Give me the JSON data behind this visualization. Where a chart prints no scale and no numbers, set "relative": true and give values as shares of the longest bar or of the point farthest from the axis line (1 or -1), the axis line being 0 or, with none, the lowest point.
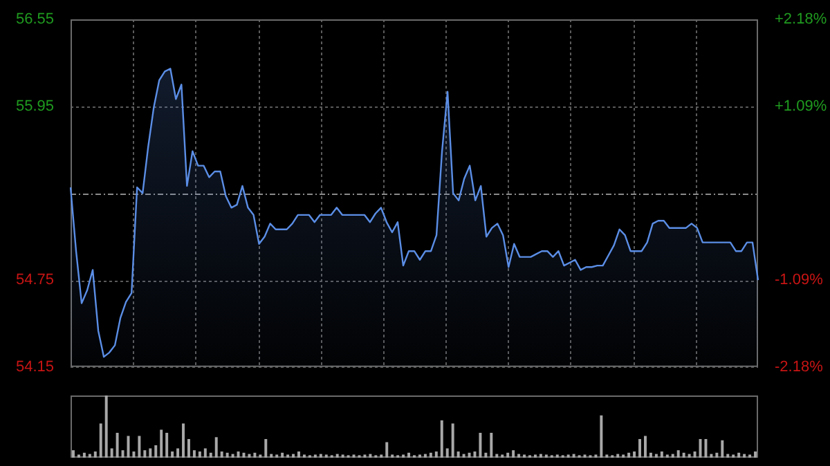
{
  "chart_data": [
    {
      "type": "area",
      "categories": [
        null,
        null,
        null,
        null,
        null,
        null,
        null,
        null,
        null,
        null,
        null,
        null,
        null,
        null,
        null,
        null,
        null,
        null,
        null,
        null,
        null,
        null,
        null,
        null,
        null,
        null,
        null,
        null,
        null,
        null,
        null,
        null,
        null,
        null,
        null,
        null,
        null,
        null,
        null,
        null,
        null,
        null,
        null,
        null,
        null,
        null,
        null,
        null,
        null,
        null,
        null,
        null,
        null,
        null,
        null,
        null,
        null,
        null,
        null,
        null,
        null,
        null,
        null,
        null,
        null,
        null,
        null,
        null,
        null,
        null,
        null,
        null,
        null,
        null,
        null,
        null,
        null,
        null,
        null,
        null,
        null,
        null,
        null,
        null,
        null,
        null,
        null,
        null,
        null,
        null,
        null,
        null,
        null,
        null,
        null,
        null,
        null,
        null,
        null,
        null,
        null,
        null,
        null,
        null,
        null,
        null,
        null,
        null,
        null,
        null,
        null,
        null,
        null,
        null,
        null,
        null,
        null,
        null,
        null,
        null,
        null,
        null,
        null,
        null,
        null
      ],
      "series": [
        {
          "color": "#5b8ee6",
          "values": [
            55.39,
            54.95,
            54.59,
            54.68,
            54.82,
            54.4,
            54.22,
            54.25,
            54.3,
            54.49,
            54.6,
            54.66,
            55.39,
            55.35,
            55.67,
            55.94,
            56.13,
            56.19,
            56.21,
            56.0,
            56.1,
            55.4,
            55.64,
            55.54,
            55.54,
            55.46,
            55.5,
            55.5,
            55.33,
            55.25,
            55.27,
            55.4,
            55.25,
            55.2,
            55.0,
            55.05,
            55.14,
            55.1,
            55.1,
            55.1,
            55.14,
            55.2,
            55.2,
            55.2,
            55.15,
            55.2,
            55.2,
            55.2,
            55.25,
            55.2,
            55.2,
            55.2,
            55.2,
            55.2,
            55.15,
            55.21,
            55.25,
            55.15,
            55.08,
            55.15,
            54.85,
            54.95,
            54.95,
            54.89,
            54.95,
            54.95,
            55.06,
            55.64,
            56.05,
            55.35,
            55.3,
            55.45,
            55.54,
            55.3,
            55.4,
            55.05,
            55.11,
            55.14,
            55.06,
            54.84,
            55.0,
            54.91,
            54.91,
            54.91,
            54.93,
            54.95,
            54.95,
            54.91,
            54.95,
            54.85,
            54.87,
            54.89,
            54.82,
            54.84,
            54.84,
            54.85,
            54.85,
            54.92,
            54.99,
            55.1,
            55.06,
            54.95,
            54.95,
            54.95,
            55.01,
            55.14,
            55.16,
            55.16,
            55.11,
            55.11,
            55.11,
            55.11,
            55.14,
            55.11,
            55.01,
            55.01,
            55.01,
            55.01,
            55.01,
            55.01,
            54.95,
            54.95,
            55.01,
            55.01,
            54.75
          ]
        }
      ],
      "ylim": [
        54.15,
        56.55
      ],
      "yticks": [
        54.15,
        54.75,
        55.95,
        56.55
      ],
      "y2lim": [
        -2.18,
        2.18
      ],
      "y2ticks": [
        {
          "value": -2.18,
          "label": "-2.18%"
        },
        {
          "value": -1.09,
          "label": "-1.09%"
        },
        {
          "value": 1.09,
          "label": "+1.09%"
        },
        {
          "value": 2.18,
          "label": "+2.18%"
        }
      ],
      "ref_lines": [
        {
          "axis": "y",
          "value": 55.35
        }
      ],
      "grid": true,
      "tick_labels": "y"
    },
    {
      "type": "bar",
      "relative": true,
      "color": "#a8a8a8",
      "categories": [
        null,
        null,
        null,
        null,
        null,
        null,
        null,
        null,
        null,
        null,
        null,
        null,
        null,
        null,
        null,
        null,
        null,
        null,
        null,
        null,
        null,
        null,
        null,
        null,
        null,
        null,
        null,
        null,
        null,
        null,
        null,
        null,
        null,
        null,
        null,
        null,
        null,
        null,
        null,
        null,
        null,
        null,
        null,
        null,
        null,
        null,
        null,
        null,
        null,
        null,
        null,
        null,
        null,
        null,
        null,
        null,
        null,
        null,
        null,
        null,
        null,
        null,
        null,
        null,
        null,
        null,
        null,
        null,
        null,
        null,
        null,
        null,
        null,
        null,
        null,
        null,
        null,
        null,
        null,
        null,
        null,
        null,
        null,
        null,
        null,
        null,
        null,
        null,
        null,
        null,
        null,
        null,
        null,
        null,
        null,
        null,
        null,
        null,
        null,
        null,
        null,
        null,
        null,
        null,
        null,
        null,
        null,
        null,
        null,
        null,
        null,
        null,
        null,
        null,
        null,
        null,
        null,
        null,
        null,
        null,
        null,
        null,
        null,
        null,
        null
      ],
      "values": [
        0.12,
        0.05,
        0.08,
        0.06,
        0.1,
        0.55,
        1.0,
        0.15,
        0.4,
        0.12,
        0.35,
        0.1,
        0.35,
        0.12,
        0.15,
        0.2,
        0.45,
        0.4,
        0.1,
        0.15,
        0.55,
        0.3,
        0.12,
        0.1,
        0.15,
        0.08,
        0.33,
        0.1,
        0.08,
        0.06,
        0.1,
        0.08,
        0.06,
        0.08,
        0.05,
        0.3,
        0.06,
        0.05,
        0.08,
        0.05,
        0.06,
        0.1,
        0.05,
        0.04,
        0.05,
        0.06,
        0.05,
        0.04,
        0.06,
        0.05,
        0.04,
        0.05,
        0.04,
        0.05,
        0.06,
        0.04,
        0.05,
        0.25,
        0.05,
        0.04,
        0.05,
        0.08,
        0.04,
        0.05,
        0.06,
        0.08,
        0.1,
        0.6,
        0.15,
        0.55,
        0.1,
        0.06,
        0.08,
        0.1,
        0.4,
        0.08,
        0.4,
        0.06,
        0.05,
        0.08,
        0.12,
        0.06,
        0.05,
        0.04,
        0.05,
        0.06,
        0.05,
        0.04,
        0.05,
        0.04,
        0.05,
        0.06,
        0.04,
        0.05,
        0.04,
        0.05,
        0.68,
        0.05,
        0.04,
        0.06,
        0.05,
        0.08,
        0.1,
        0.3,
        0.35,
        0.08,
        0.06,
        0.1,
        0.05,
        0.06,
        0.12,
        0.08,
        0.06,
        0.1,
        0.3,
        0.3,
        0.06,
        0.08,
        0.28,
        0.06,
        0.05,
        0.08,
        0.06,
        0.05,
        0.1
      ],
      "grid": false,
      "tick_labels": false
    }
  ]
}
